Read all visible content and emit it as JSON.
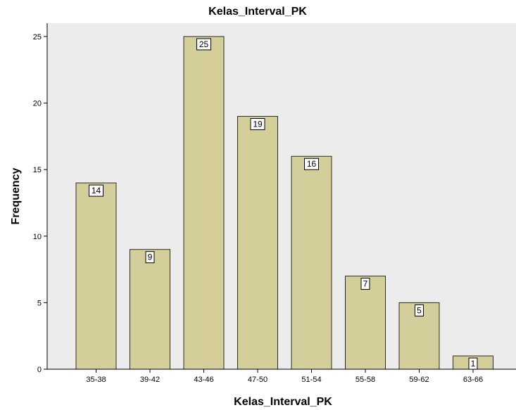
{
  "chart_data": {
    "type": "bar",
    "title": "Kelas_Interval_PK",
    "xlabel": "Kelas_Interval_PK",
    "ylabel": "Frequency",
    "categories": [
      "35-38",
      "39-42",
      "43-46",
      "47-50",
      "51-54",
      "55-58",
      "59-62",
      "63-66"
    ],
    "values": [
      14,
      9,
      25,
      19,
      16,
      7,
      5,
      1
    ],
    "ylim": [
      0,
      26
    ],
    "yticks": [
      0,
      5,
      10,
      15,
      20,
      25
    ],
    "data_labels": true,
    "grid": false,
    "legend": "none",
    "colors": {
      "bar_fill": "#d3ce9a",
      "bar_stroke": "#2b2b2b",
      "plot_background": "#ececec",
      "page_background": "#ffffff"
    }
  }
}
